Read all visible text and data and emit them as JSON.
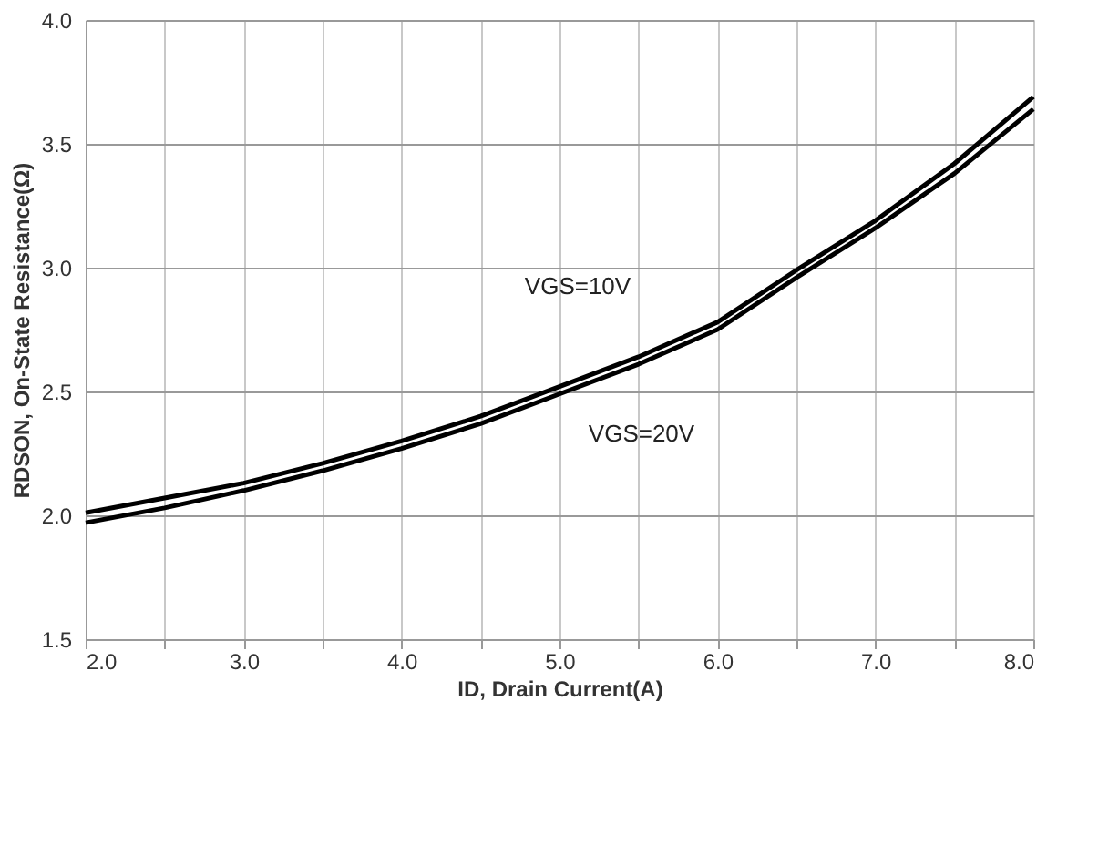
{
  "chart_data": {
    "type": "line",
    "xlabel": "ID, Drain Current(A)",
    "ylabel": "RDSON, On-State Resistance(Ω)",
    "x": [
      2.0,
      2.5,
      3.0,
      3.5,
      4.0,
      4.5,
      5.0,
      5.5,
      6.0,
      6.5,
      7.0,
      7.5,
      8.0
    ],
    "series": [
      {
        "name": "VGS=10V",
        "color": "#000000",
        "values": [
          2.01,
          2.07,
          2.13,
          2.21,
          2.3,
          2.4,
          2.52,
          2.64,
          2.78,
          2.99,
          3.19,
          3.42,
          3.69
        ]
      },
      {
        "name": "VGS=20V",
        "color": "#000000",
        "values": [
          1.97,
          2.03,
          2.1,
          2.18,
          2.27,
          2.37,
          2.49,
          2.61,
          2.75,
          2.96,
          3.16,
          3.38,
          3.64
        ]
      }
    ],
    "xlim": [
      2.0,
      8.0
    ],
    "xticks": [
      {
        "value": 2.0,
        "label": "2.0"
      },
      {
        "value": 2.5,
        "label": null
      },
      {
        "value": 3.0,
        "label": "3.0"
      },
      {
        "value": 3.5,
        "label": null
      },
      {
        "value": 4.0,
        "label": "4.0"
      },
      {
        "value": 4.5,
        "label": null
      },
      {
        "value": 5.0,
        "label": "5.0"
      },
      {
        "value": 5.5,
        "label": null
      },
      {
        "value": 6.0,
        "label": "6.0"
      },
      {
        "value": 6.5,
        "label": null
      },
      {
        "value": 7.0,
        "label": "7.0"
      },
      {
        "value": 7.5,
        "label": null
      },
      {
        "value": 8.0,
        "label": "8.0"
      }
    ],
    "ylim": [
      1.5,
      4.0
    ],
    "yticks": [
      {
        "value": 1.5,
        "label": "1.5"
      },
      {
        "value": 2.0,
        "label": "2.0"
      },
      {
        "value": 2.5,
        "label": "2.5"
      },
      {
        "value": 3.0,
        "label": "3.0"
      },
      {
        "value": 3.5,
        "label": "3.5"
      },
      {
        "value": 4.0,
        "label": "4.0"
      }
    ],
    "grid": true,
    "legend": false,
    "marker": "none",
    "line_style": "solid"
  }
}
